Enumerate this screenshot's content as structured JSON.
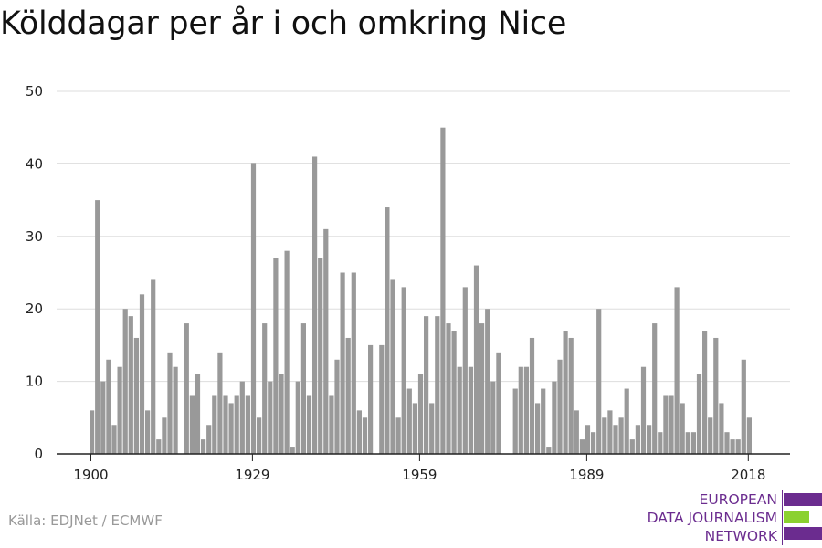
{
  "title": "Kölddagar per år i och omkring Nice",
  "source": "Källa: EDJNet / ECMWF",
  "logo": {
    "lines": [
      "EUROPEAN",
      "DATA JOURNALISM",
      "NETWORK"
    ],
    "colors": {
      "purple": "#6b2c8f",
      "green": "#8bd12f"
    }
  },
  "colors": {
    "bar": "#999999",
    "grid": "#dddddd",
    "axis": "#222222",
    "text": "#222222"
  },
  "chart_data": {
    "type": "bar",
    "title": "Kölddagar per år i och omkring Nice",
    "xlabel": "",
    "ylabel": "",
    "ylim": [
      0,
      50
    ],
    "yticks": [
      0,
      10,
      20,
      30,
      40,
      50
    ],
    "xticks": [
      1900,
      1929,
      1959,
      1989,
      2018
    ],
    "grid": true,
    "x": [
      1900,
      1901,
      1902,
      1903,
      1904,
      1905,
      1906,
      1907,
      1908,
      1909,
      1910,
      1911,
      1912,
      1913,
      1914,
      1915,
      1916,
      1917,
      1918,
      1919,
      1920,
      1921,
      1922,
      1923,
      1924,
      1925,
      1926,
      1927,
      1928,
      1929,
      1930,
      1931,
      1932,
      1933,
      1934,
      1935,
      1936,
      1937,
      1938,
      1939,
      1940,
      1941,
      1942,
      1943,
      1944,
      1945,
      1946,
      1947,
      1948,
      1949,
      1950,
      1951,
      1952,
      1953,
      1954,
      1955,
      1956,
      1957,
      1958,
      1959,
      1960,
      1961,
      1962,
      1963,
      1964,
      1965,
      1966,
      1967,
      1968,
      1969,
      1970,
      1971,
      1972,
      1973,
      1974,
      1975,
      1976,
      1977,
      1978,
      1979,
      1980,
      1981,
      1982,
      1983,
      1984,
      1985,
      1986,
      1987,
      1988,
      1989,
      1990,
      1991,
      1992,
      1993,
      1994,
      1995,
      1996,
      1997,
      1998,
      1999,
      2000,
      2001,
      2002,
      2003,
      2004,
      2005,
      2006,
      2007,
      2008,
      2009,
      2010,
      2011,
      2012,
      2013,
      2014,
      2015,
      2016,
      2017,
      2018
    ],
    "values": [
      6,
      35,
      10,
      13,
      4,
      12,
      20,
      19,
      16,
      22,
      6,
      24,
      2,
      5,
      14,
      12,
      0,
      18,
      8,
      11,
      2,
      4,
      8,
      14,
      8,
      7,
      8,
      10,
      8,
      40,
      5,
      18,
      10,
      27,
      11,
      28,
      1,
      10,
      18,
      8,
      41,
      27,
      31,
      8,
      13,
      25,
      16,
      25,
      6,
      5,
      15,
      0,
      15,
      34,
      24,
      5,
      23,
      9,
      7,
      11,
      19,
      7,
      19,
      45,
      18,
      17,
      12,
      23,
      12,
      26,
      18,
      20,
      10,
      14,
      0,
      0,
      9,
      12,
      12,
      16,
      7,
      9,
      1,
      10,
      13,
      17,
      16,
      6,
      2,
      4,
      3,
      20,
      5,
      6,
      4,
      5,
      9,
      2,
      4,
      12,
      4,
      18,
      3,
      8,
      8,
      23,
      7,
      3,
      3,
      11,
      17,
      5,
      16,
      7,
      3,
      2,
      2,
      13,
      5
    ]
  }
}
